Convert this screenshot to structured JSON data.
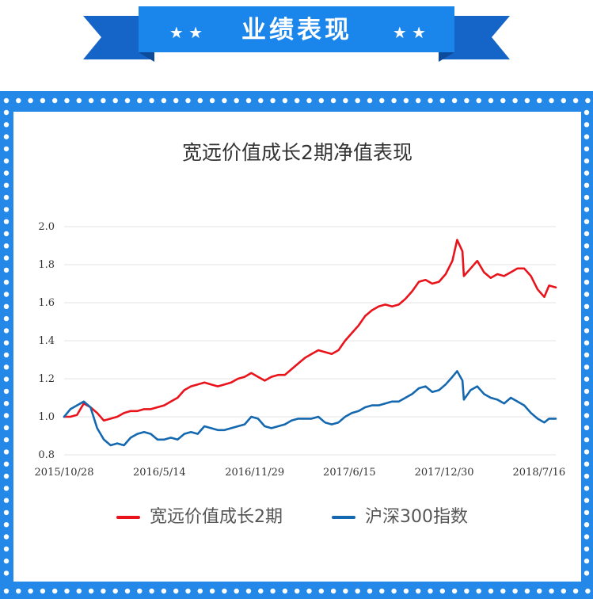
{
  "banner": {
    "title": "业绩表现",
    "stars_left": "★ ★",
    "stars_right": "★ ★"
  },
  "colors": {
    "frame": "#2388e8",
    "banner_dark": "#1565c8",
    "banner_main": "#1a85ea",
    "series_fund": "#e8131b",
    "series_index": "#1468b0",
    "grid": "#e3e3e3"
  },
  "chart_data": {
    "type": "line",
    "title": "宽远价值成长2期净值表现",
    "xlabel": "",
    "ylabel": "",
    "ylim": [
      0.8,
      2.0
    ],
    "yticks": [
      "0.8",
      "1.0",
      "1.2",
      "1.4",
      "1.6",
      "1.8",
      "2.0"
    ],
    "xticks": [
      "2015/10/28",
      "2016/5/14",
      "2016/11/29",
      "2017/6/15",
      "2017/12/30",
      "2018/7/16"
    ],
    "x_range": [
      "2015/10/28",
      "2018/8/20"
    ],
    "grid": true,
    "legend": "bottom",
    "series": [
      {
        "name": "宽远价值成长2期",
        "color": "#e8131b",
        "points": [
          [
            "2015/10/28",
            1.0
          ],
          [
            "2015/11/10",
            1.0
          ],
          [
            "2015/11/24",
            1.01
          ],
          [
            "2015/12/08",
            1.07
          ],
          [
            "2015/12/22",
            1.05
          ],
          [
            "2016/01/05",
            1.02
          ],
          [
            "2016/01/19",
            0.98
          ],
          [
            "2016/02/02",
            0.99
          ],
          [
            "2016/02/16",
            1.0
          ],
          [
            "2016/03/01",
            1.02
          ],
          [
            "2016/03/15",
            1.03
          ],
          [
            "2016/03/29",
            1.03
          ],
          [
            "2016/04/12",
            1.04
          ],
          [
            "2016/04/26",
            1.04
          ],
          [
            "2016/05/10",
            1.05
          ],
          [
            "2016/05/24",
            1.06
          ],
          [
            "2016/06/07",
            1.08
          ],
          [
            "2016/06/21",
            1.1
          ],
          [
            "2016/07/05",
            1.14
          ],
          [
            "2016/07/19",
            1.16
          ],
          [
            "2016/08/02",
            1.17
          ],
          [
            "2016/08/16",
            1.18
          ],
          [
            "2016/08/30",
            1.17
          ],
          [
            "2016/09/13",
            1.16
          ],
          [
            "2016/09/27",
            1.17
          ],
          [
            "2016/10/11",
            1.18
          ],
          [
            "2016/10/25",
            1.2
          ],
          [
            "2016/11/08",
            1.21
          ],
          [
            "2016/11/22",
            1.23
          ],
          [
            "2016/12/06",
            1.21
          ],
          [
            "2016/12/20",
            1.19
          ],
          [
            "2017/01/03",
            1.21
          ],
          [
            "2017/01/17",
            1.22
          ],
          [
            "2017/01/31",
            1.22
          ],
          [
            "2017/02/14",
            1.25
          ],
          [
            "2017/02/28",
            1.28
          ],
          [
            "2017/03/14",
            1.31
          ],
          [
            "2017/03/28",
            1.33
          ],
          [
            "2017/04/11",
            1.35
          ],
          [
            "2017/04/25",
            1.34
          ],
          [
            "2017/05/09",
            1.33
          ],
          [
            "2017/05/23",
            1.35
          ],
          [
            "2017/06/06",
            1.4
          ],
          [
            "2017/06/20",
            1.44
          ],
          [
            "2017/07/04",
            1.48
          ],
          [
            "2017/07/18",
            1.53
          ],
          [
            "2017/08/01",
            1.56
          ],
          [
            "2017/08/15",
            1.58
          ],
          [
            "2017/08/29",
            1.59
          ],
          [
            "2017/09/12",
            1.58
          ],
          [
            "2017/09/26",
            1.59
          ],
          [
            "2017/10/10",
            1.62
          ],
          [
            "2017/10/24",
            1.66
          ],
          [
            "2017/11/07",
            1.71
          ],
          [
            "2017/11/21",
            1.72
          ],
          [
            "2017/12/05",
            1.7
          ],
          [
            "2017/12/19",
            1.71
          ],
          [
            "2018/01/02",
            1.75
          ],
          [
            "2018/01/16",
            1.82
          ],
          [
            "2018/01/26",
            1.93
          ],
          [
            "2018/02/06",
            1.87
          ],
          [
            "2018/02/09",
            1.74
          ],
          [
            "2018/02/23",
            1.78
          ],
          [
            "2018/03/09",
            1.82
          ],
          [
            "2018/03/23",
            1.76
          ],
          [
            "2018/04/06",
            1.73
          ],
          [
            "2018/04/20",
            1.75
          ],
          [
            "2018/05/04",
            1.74
          ],
          [
            "2018/05/18",
            1.76
          ],
          [
            "2018/06/01",
            1.78
          ],
          [
            "2018/06/15",
            1.78
          ],
          [
            "2018/06/29",
            1.74
          ],
          [
            "2018/07/13",
            1.67
          ],
          [
            "2018/07/27",
            1.63
          ],
          [
            "2018/08/06",
            1.69
          ],
          [
            "2018/08/20",
            1.68
          ]
        ]
      },
      {
        "name": "沪深300指数",
        "color": "#1468b0",
        "points": [
          [
            "2015/10/28",
            1.0
          ],
          [
            "2015/11/10",
            1.04
          ],
          [
            "2015/11/24",
            1.06
          ],
          [
            "2015/12/08",
            1.08
          ],
          [
            "2015/12/22",
            1.05
          ],
          [
            "2016/01/05",
            0.94
          ],
          [
            "2016/01/19",
            0.88
          ],
          [
            "2016/02/02",
            0.85
          ],
          [
            "2016/02/16",
            0.86
          ],
          [
            "2016/03/01",
            0.85
          ],
          [
            "2016/03/15",
            0.89
          ],
          [
            "2016/03/29",
            0.91
          ],
          [
            "2016/04/12",
            0.92
          ],
          [
            "2016/04/26",
            0.91
          ],
          [
            "2016/05/10",
            0.88
          ],
          [
            "2016/05/24",
            0.88
          ],
          [
            "2016/06/07",
            0.89
          ],
          [
            "2016/06/21",
            0.88
          ],
          [
            "2016/07/05",
            0.91
          ],
          [
            "2016/07/19",
            0.92
          ],
          [
            "2016/08/02",
            0.91
          ],
          [
            "2016/08/16",
            0.95
          ],
          [
            "2016/08/30",
            0.94
          ],
          [
            "2016/09/13",
            0.93
          ],
          [
            "2016/09/27",
            0.93
          ],
          [
            "2016/10/11",
            0.94
          ],
          [
            "2016/10/25",
            0.95
          ],
          [
            "2016/11/08",
            0.96
          ],
          [
            "2016/11/22",
            1.0
          ],
          [
            "2016/12/06",
            0.99
          ],
          [
            "2016/12/20",
            0.95
          ],
          [
            "2017/01/03",
            0.94
          ],
          [
            "2017/01/17",
            0.95
          ],
          [
            "2017/01/31",
            0.96
          ],
          [
            "2017/02/14",
            0.98
          ],
          [
            "2017/02/28",
            0.99
          ],
          [
            "2017/03/14",
            0.99
          ],
          [
            "2017/03/28",
            0.99
          ],
          [
            "2017/04/11",
            1.0
          ],
          [
            "2017/04/25",
            0.97
          ],
          [
            "2017/05/09",
            0.96
          ],
          [
            "2017/05/23",
            0.97
          ],
          [
            "2017/06/06",
            1.0
          ],
          [
            "2017/06/20",
            1.02
          ],
          [
            "2017/07/04",
            1.03
          ],
          [
            "2017/07/18",
            1.05
          ],
          [
            "2017/08/01",
            1.06
          ],
          [
            "2017/08/15",
            1.06
          ],
          [
            "2017/08/29",
            1.07
          ],
          [
            "2017/09/12",
            1.08
          ],
          [
            "2017/09/26",
            1.08
          ],
          [
            "2017/10/10",
            1.1
          ],
          [
            "2017/10/24",
            1.12
          ],
          [
            "2017/11/07",
            1.15
          ],
          [
            "2017/11/21",
            1.16
          ],
          [
            "2017/12/05",
            1.13
          ],
          [
            "2017/12/19",
            1.14
          ],
          [
            "2018/01/02",
            1.17
          ],
          [
            "2018/01/16",
            1.21
          ],
          [
            "2018/01/26",
            1.24
          ],
          [
            "2018/02/06",
            1.19
          ],
          [
            "2018/02/09",
            1.09
          ],
          [
            "2018/02/23",
            1.14
          ],
          [
            "2018/03/09",
            1.16
          ],
          [
            "2018/03/23",
            1.12
          ],
          [
            "2018/04/06",
            1.1
          ],
          [
            "2018/04/20",
            1.09
          ],
          [
            "2018/05/04",
            1.07
          ],
          [
            "2018/05/18",
            1.1
          ],
          [
            "2018/06/01",
            1.08
          ],
          [
            "2018/06/15",
            1.06
          ],
          [
            "2018/06/29",
            1.02
          ],
          [
            "2018/07/13",
            0.99
          ],
          [
            "2018/07/27",
            0.97
          ],
          [
            "2018/08/06",
            0.99
          ],
          [
            "2018/08/20",
            0.99
          ]
        ]
      }
    ]
  }
}
